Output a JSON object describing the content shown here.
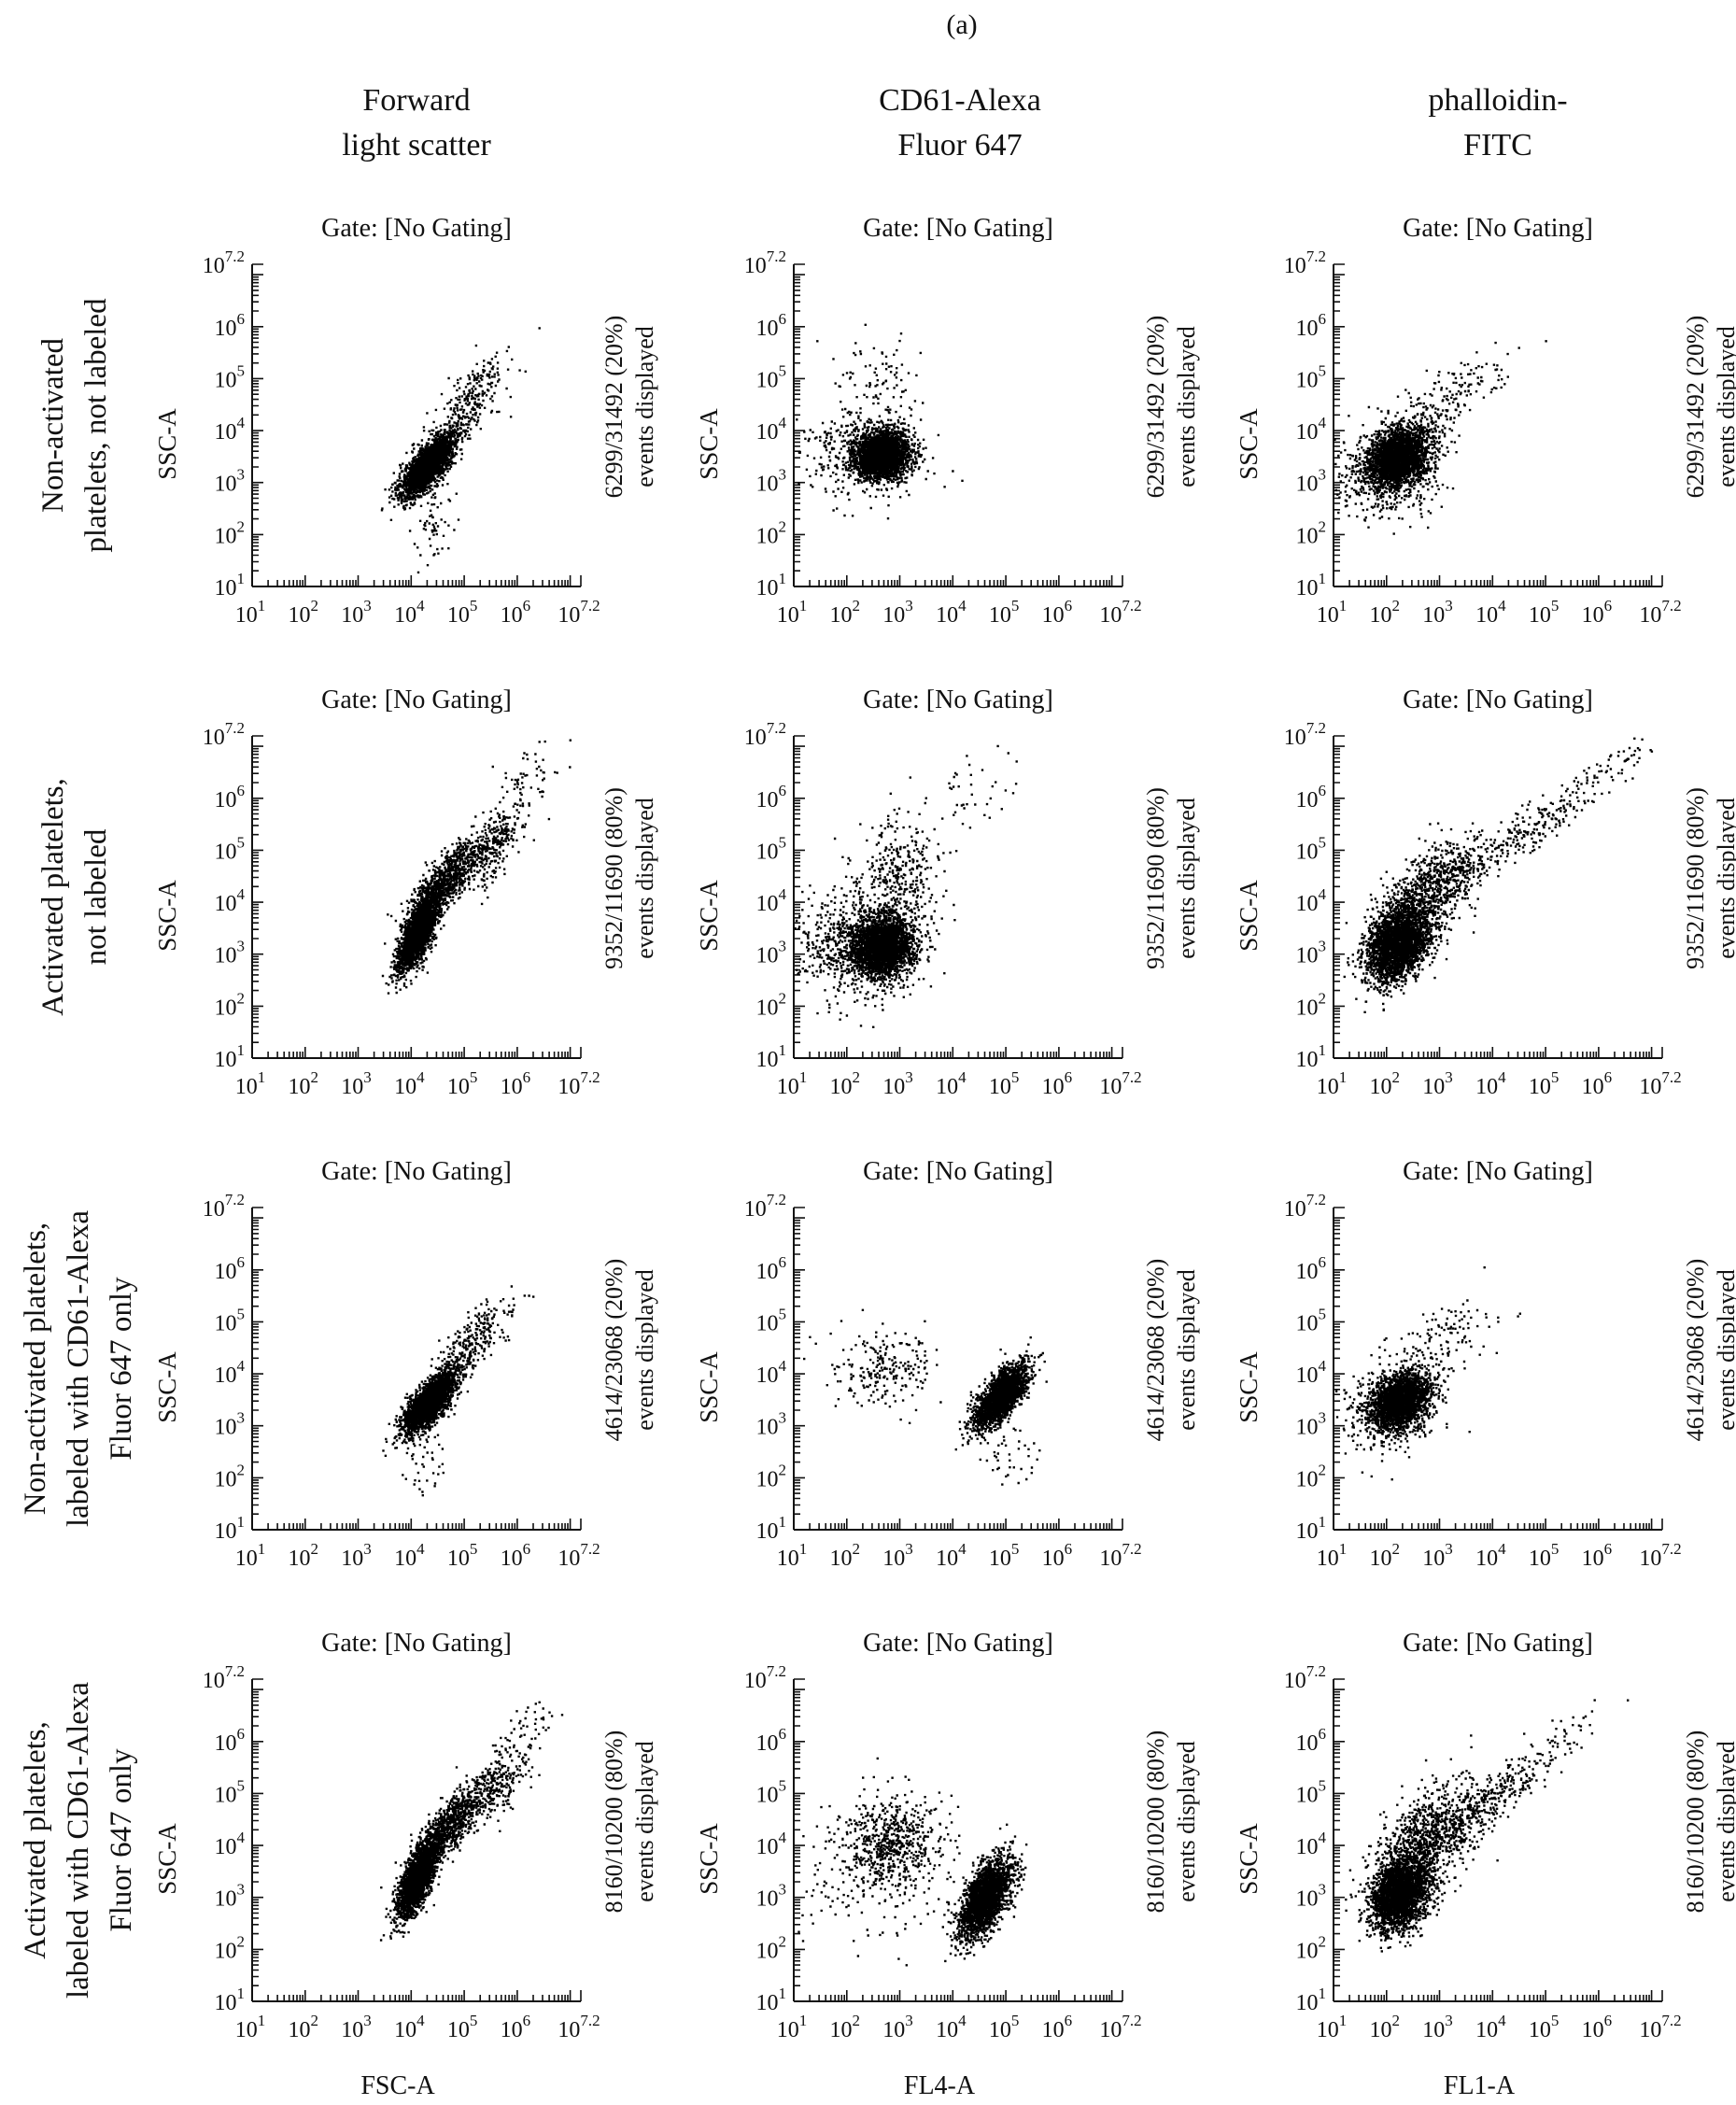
{
  "figure_label": "(a)",
  "column_headers": [
    [
      "Forward",
      "light scatter"
    ],
    [
      "CD61-Alexa",
      "Fluor 647"
    ],
    [
      "phalloidin-",
      "FITC"
    ]
  ],
  "row_headers": [
    [
      "Non-activated",
      "platelets, not labeled"
    ],
    [
      "Activated platelets,",
      "not labeled"
    ],
    [
      "Non-activated platelets,",
      "labeled with CD61-Alexa",
      "Fluor 647 only"
    ],
    [
      "Activated platelets,",
      "labeled with CD61-Alexa",
      "Fluor 647 only"
    ]
  ],
  "axes": {
    "ylabel": "SSC-A",
    "xlabels": [
      "FSC-A",
      "FL4-A",
      "FL1-A"
    ],
    "scale": "log",
    "range": [
      1,
      7.2
    ],
    "tick_exponents": [
      "1",
      "2",
      "3",
      "4",
      "5",
      "6",
      "7.2"
    ],
    "tick_base": "10"
  },
  "chart_data": [
    {
      "type": "scatter",
      "row": 0,
      "col": 0,
      "title": "Gate: [No Gating]",
      "events_label": [
        "6299/31492 (20%)",
        "events displayed"
      ],
      "xlabel": "",
      "ylabel": "SSC-A",
      "xlim_log10": [
        1,
        7.2
      ],
      "ylim_log10": [
        1,
        7.2
      ],
      "log_scale": true,
      "clusters": [
        {
          "n": 2600,
          "cx": 4.3,
          "cy": 3.35,
          "sx": 0.25,
          "sy": 0.3,
          "rho": 0.75
        },
        {
          "n": 260,
          "cx": 5.1,
          "cy": 4.6,
          "sx": 0.35,
          "sy": 0.45,
          "rho": 0.7
        },
        {
          "n": 60,
          "cx": 4.4,
          "cy": 2.3,
          "sx": 0.2,
          "sy": 0.4,
          "rho": 0.3
        }
      ]
    },
    {
      "type": "scatter",
      "row": 0,
      "col": 1,
      "title": "Gate: [No Gating]",
      "events_label": [
        "6299/31492 (20%)",
        "events displayed"
      ],
      "xlabel": "",
      "ylabel": "SSC-A",
      "xlim_log10": [
        1,
        7.2
      ],
      "ylim_log10": [
        1,
        7.2
      ],
      "log_scale": true,
      "clusters": [
        {
          "n": 2500,
          "cx": 2.65,
          "cy": 3.55,
          "sx": 0.25,
          "sy": 0.22,
          "rho": 0.1
        },
        {
          "n": 420,
          "cx": 2.3,
          "cy": 3.6,
          "sx": 0.6,
          "sy": 0.4,
          "rho": 0.0
        },
        {
          "n": 120,
          "cx": 2.5,
          "cy": 4.7,
          "sx": 0.4,
          "sy": 0.5,
          "rho": 0.0
        }
      ]
    },
    {
      "type": "scatter",
      "row": 0,
      "col": 2,
      "title": "Gate: [No Gating]",
      "events_label": [
        "6299/31492 (20%)",
        "events displayed"
      ],
      "xlabel": "",
      "ylabel": "SSC-A",
      "xlim_log10": [
        1,
        7.2
      ],
      "ylim_log10": [
        1,
        7.2
      ],
      "log_scale": true,
      "clusters": [
        {
          "n": 2400,
          "cx": 2.2,
          "cy": 3.5,
          "sx": 0.3,
          "sy": 0.3,
          "rho": 0.3
        },
        {
          "n": 420,
          "cx": 2.0,
          "cy": 3.2,
          "sx": 0.5,
          "sy": 0.45,
          "rho": 0.1
        },
        {
          "n": 180,
          "cx": 3.1,
          "cy": 4.6,
          "sx": 0.6,
          "sy": 0.45,
          "rho": 0.7
        }
      ]
    },
    {
      "type": "scatter",
      "row": 1,
      "col": 0,
      "title": "Gate: [No Gating]",
      "events_label": [
        "9352/11690 (80%)",
        "events displayed"
      ],
      "xlabel": "",
      "ylabel": "SSC-A",
      "xlim_log10": [
        1,
        7.2
      ],
      "ylim_log10": [
        1,
        7.2
      ],
      "log_scale": true,
      "clusters": [
        {
          "n": 2200,
          "cx": 4.1,
          "cy": 3.4,
          "sx": 0.18,
          "sy": 0.35,
          "rho": 0.7
        },
        {
          "n": 900,
          "cx": 4.6,
          "cy": 4.4,
          "sx": 0.35,
          "sy": 0.4,
          "rho": 0.8
        },
        {
          "n": 300,
          "cx": 5.5,
          "cy": 5.1,
          "sx": 0.3,
          "sy": 0.4,
          "rho": 0.6
        },
        {
          "n": 60,
          "cx": 6.2,
          "cy": 6.4,
          "sx": 0.35,
          "sy": 0.4,
          "rho": 0.5
        }
      ]
    },
    {
      "type": "scatter",
      "row": 1,
      "col": 1,
      "title": "Gate: [No Gating]",
      "events_label": [
        "9352/11690 (80%)",
        "events displayed"
      ],
      "xlabel": "",
      "ylabel": "SSC-A",
      "xlim_log10": [
        1,
        7.2
      ],
      "ylim_log10": [
        1,
        7.2
      ],
      "log_scale": true,
      "clusters": [
        {
          "n": 2600,
          "cx": 2.65,
          "cy": 3.15,
          "sx": 0.28,
          "sy": 0.28,
          "rho": 0.1
        },
        {
          "n": 700,
          "cx": 2.2,
          "cy": 3.2,
          "sx": 0.6,
          "sy": 0.5,
          "rho": 0.0
        },
        {
          "n": 380,
          "cx": 2.9,
          "cy": 4.4,
          "sx": 0.4,
          "sy": 0.55,
          "rho": 0.2
        },
        {
          "n": 50,
          "cx": 4.0,
          "cy": 6.0,
          "sx": 0.6,
          "sy": 0.5,
          "rho": 0.3
        }
      ]
    },
    {
      "type": "scatter",
      "row": 1,
      "col": 2,
      "title": "Gate: [No Gating]",
      "events_label": [
        "9352/11690 (80%)",
        "events displayed"
      ],
      "xlabel": "",
      "ylabel": "SSC-A",
      "xlim_log10": [
        1,
        7.2
      ],
      "ylim_log10": [
        1,
        7.2
      ],
      "log_scale": true,
      "clusters": [
        {
          "n": 2600,
          "cx": 2.2,
          "cy": 3.2,
          "sx": 0.3,
          "sy": 0.35,
          "rho": 0.3
        },
        {
          "n": 900,
          "cx": 2.8,
          "cy": 4.2,
          "sx": 0.5,
          "sy": 0.5,
          "rho": 0.6
        },
        {
          "n": 250,
          "cx": 4.5,
          "cy": 5.3,
          "sx": 0.7,
          "sy": 0.5,
          "rho": 0.9
        },
        {
          "n": 60,
          "cx": 6.2,
          "cy": 6.6,
          "sx": 0.5,
          "sy": 0.4,
          "rho": 0.8
        }
      ]
    },
    {
      "type": "scatter",
      "row": 2,
      "col": 0,
      "title": "Gate: [No Gating]",
      "events_label": [
        "4614/23068 (20%)",
        "events displayed"
      ],
      "xlabel": "",
      "ylabel": "SSC-A",
      "xlim_log10": [
        1,
        7.2
      ],
      "ylim_log10": [
        1,
        7.2
      ],
      "log_scale": true,
      "clusters": [
        {
          "n": 2500,
          "cx": 4.35,
          "cy": 3.5,
          "sx": 0.25,
          "sy": 0.3,
          "rho": 0.75
        },
        {
          "n": 240,
          "cx": 5.2,
          "cy": 4.7,
          "sx": 0.35,
          "sy": 0.4,
          "rho": 0.7
        },
        {
          "n": 40,
          "cx": 4.3,
          "cy": 2.3,
          "sx": 0.2,
          "sy": 0.3,
          "rho": 0.2
        }
      ]
    },
    {
      "type": "scatter",
      "row": 2,
      "col": 1,
      "title": "Gate: [No Gating]",
      "events_label": [
        "4614/23068 (20%)",
        "events displayed"
      ],
      "xlabel": "",
      "ylabel": "SSC-A",
      "xlim_log10": [
        1,
        7.2
      ],
      "ylim_log10": [
        1,
        7.2
      ],
      "log_scale": true,
      "clusters": [
        {
          "n": 2100,
          "cx": 4.9,
          "cy": 3.6,
          "sx": 0.25,
          "sy": 0.3,
          "rho": 0.7
        },
        {
          "n": 220,
          "cx": 2.7,
          "cy": 4.1,
          "sx": 0.5,
          "sy": 0.4,
          "rho": 0.0
        },
        {
          "n": 40,
          "cx": 5.0,
          "cy": 2.4,
          "sx": 0.3,
          "sy": 0.3,
          "rho": 0.2
        }
      ]
    },
    {
      "type": "scatter",
      "row": 2,
      "col": 2,
      "title": "Gate: [No Gating]",
      "events_label": [
        "4614/23068 (20%)",
        "events displayed"
      ],
      "xlabel": "",
      "ylabel": "SSC-A",
      "xlim_log10": [
        1,
        7.2
      ],
      "ylim_log10": [
        1,
        7.2
      ],
      "log_scale": true,
      "clusters": [
        {
          "n": 2200,
          "cx": 2.25,
          "cy": 3.5,
          "sx": 0.28,
          "sy": 0.28,
          "rho": 0.3
        },
        {
          "n": 320,
          "cx": 2.0,
          "cy": 3.3,
          "sx": 0.45,
          "sy": 0.4,
          "rho": 0.1
        },
        {
          "n": 140,
          "cx": 3.0,
          "cy": 4.6,
          "sx": 0.5,
          "sy": 0.4,
          "rho": 0.6
        }
      ]
    },
    {
      "type": "scatter",
      "row": 3,
      "col": 0,
      "title": "Gate: [No Gating]",
      "events_label": [
        "8160/10200 (80%)",
        "events displayed"
      ],
      "xlabel": "FSC-A",
      "ylabel": "SSC-A",
      "xlim_log10": [
        1,
        7.2
      ],
      "ylim_log10": [
        1,
        7.2
      ],
      "log_scale": true,
      "clusters": [
        {
          "n": 2300,
          "cx": 4.1,
          "cy": 3.35,
          "sx": 0.18,
          "sy": 0.35,
          "rho": 0.7
        },
        {
          "n": 900,
          "cx": 4.7,
          "cy": 4.4,
          "sx": 0.35,
          "sy": 0.4,
          "rho": 0.8
        },
        {
          "n": 250,
          "cx": 5.6,
          "cy": 5.2,
          "sx": 0.3,
          "sy": 0.35,
          "rho": 0.6
        },
        {
          "n": 40,
          "cx": 6.2,
          "cy": 6.3,
          "sx": 0.3,
          "sy": 0.3,
          "rho": 0.5
        }
      ]
    },
    {
      "type": "scatter",
      "row": 3,
      "col": 1,
      "title": "Gate: [No Gating]",
      "events_label": [
        "8160/10200 (80%)",
        "events displayed"
      ],
      "xlabel": "FL4-A",
      "ylabel": "SSC-A",
      "xlim_log10": [
        1,
        7.2
      ],
      "ylim_log10": [
        1,
        7.2
      ],
      "log_scale": true,
      "clusters": [
        {
          "n": 2300,
          "cx": 4.6,
          "cy": 3.0,
          "sx": 0.25,
          "sy": 0.38,
          "rho": 0.6
        },
        {
          "n": 600,
          "cx": 2.8,
          "cy": 4.1,
          "sx": 0.45,
          "sy": 0.45,
          "rho": 0.1
        },
        {
          "n": 160,
          "cx": 2.6,
          "cy": 3.4,
          "sx": 0.8,
          "sy": 0.7,
          "rho": 0.0
        }
      ]
    },
    {
      "type": "scatter",
      "row": 3,
      "col": 2,
      "title": "Gate: [No Gating]",
      "events_label": [
        "8160/10200 (80%)",
        "events displayed"
      ],
      "xlabel": "FL1-A",
      "ylabel": "SSC-A",
      "xlim_log10": [
        1,
        7.2
      ],
      "ylim_log10": [
        1,
        7.2
      ],
      "log_scale": true,
      "clusters": [
        {
          "n": 2500,
          "cx": 2.25,
          "cy": 3.1,
          "sx": 0.28,
          "sy": 0.35,
          "rho": 0.3
        },
        {
          "n": 900,
          "cx": 2.8,
          "cy": 4.2,
          "sx": 0.5,
          "sy": 0.5,
          "rho": 0.5
        },
        {
          "n": 250,
          "cx": 4.0,
          "cy": 5.0,
          "sx": 0.6,
          "sy": 0.45,
          "rho": 0.8
        },
        {
          "n": 40,
          "cx": 5.5,
          "cy": 6.2,
          "sx": 0.5,
          "sy": 0.4,
          "rho": 0.7
        }
      ]
    }
  ]
}
